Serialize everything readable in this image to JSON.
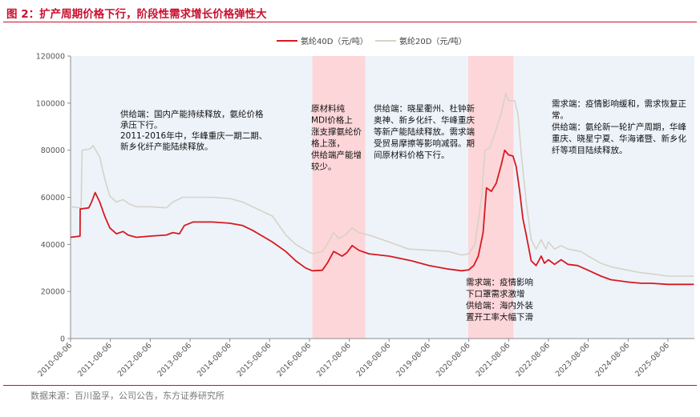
{
  "figure": {
    "title": "图 2：扩产周期价格下行，阶段性需求增长价格弹性大",
    "source": "数据来源：百川盈孚，公司公告，东方证券研究所"
  },
  "colors": {
    "pa40d": "#d71920",
    "pa20d": "#d6d3c6",
    "shade_blue": "#eef3fa",
    "shade_red": "#fdd6d9",
    "accent": "#c8102e"
  },
  "chart_data": {
    "type": "line",
    "ylim": [
      0,
      120000
    ],
    "y_ticks": [
      0,
      20000,
      40000,
      60000,
      80000,
      100000,
      120000
    ],
    "y_tick_labels": [
      "0",
      "20000",
      "40000",
      "60000",
      "80000",
      "100000",
      "120000"
    ],
    "xlim": [
      "2010-08-06",
      "2026-04-06"
    ],
    "x_tick_labels": [
      "2010-08-06",
      "2011-08-06",
      "2012-08-06",
      "2013-08-06",
      "2014-08-06",
      "2015-08-06",
      "2016-08-06",
      "2017-08-06",
      "2018-08-06",
      "2019-08-06",
      "2020-08-06",
      "2021-08-06",
      "2022-08-06",
      "2023-08-06",
      "2024-08-06",
      "2025-08-06"
    ],
    "legend": {
      "placement": "top-center"
    },
    "series": [
      {
        "name": "氨纶40D（元/吨）",
        "color": "#d71920",
        "points": [
          [
            "2010-08-06",
            43000
          ],
          [
            "2010-11-01",
            43500
          ],
          [
            "2010-11-02",
            55000
          ],
          [
            "2011-01-20",
            55500
          ],
          [
            "2011-02-15",
            58000
          ],
          [
            "2011-03-20",
            62000
          ],
          [
            "2011-05-01",
            58000
          ],
          [
            "2011-06-15",
            52000
          ],
          [
            "2011-08-01",
            47000
          ],
          [
            "2011-10-01",
            44500
          ],
          [
            "2011-12-01",
            45500
          ],
          [
            "2012-01-15",
            44000
          ],
          [
            "2012-04-01",
            43000
          ],
          [
            "2012-08-06",
            43500
          ],
          [
            "2013-01-01",
            44000
          ],
          [
            "2013-03-01",
            45000
          ],
          [
            "2013-05-01",
            44500
          ],
          [
            "2013-06-15",
            48000
          ],
          [
            "2013-09-01",
            49500
          ],
          [
            "2014-03-01",
            49500
          ],
          [
            "2014-08-06",
            49000
          ],
          [
            "2014-12-01",
            48000
          ],
          [
            "2015-03-01",
            46000
          ],
          [
            "2015-06-01",
            43500
          ],
          [
            "2015-09-01",
            41000
          ],
          [
            "2016-01-01",
            37000
          ],
          [
            "2016-04-01",
            33000
          ],
          [
            "2016-07-01",
            30000
          ],
          [
            "2016-09-01",
            28800
          ],
          [
            "2016-12-01",
            29000
          ],
          [
            "2017-01-15",
            32000
          ],
          [
            "2017-03-15",
            37000
          ],
          [
            "2017-06-01",
            35000
          ],
          [
            "2017-07-15",
            36500
          ],
          [
            "2017-09-01",
            39500
          ],
          [
            "2017-11-01",
            37500
          ],
          [
            "2018-02-01",
            36000
          ],
          [
            "2018-08-06",
            35000
          ],
          [
            "2019-03-01",
            33000
          ],
          [
            "2019-08-06",
            31000
          ],
          [
            "2020-02-01",
            29500
          ],
          [
            "2020-06-01",
            28800
          ],
          [
            "2020-08-06",
            29200
          ],
          [
            "2020-09-20",
            31000
          ],
          [
            "2020-11-01",
            35000
          ],
          [
            "2020-12-15",
            45000
          ],
          [
            "2021-01-15",
            64000
          ],
          [
            "2021-03-01",
            62500
          ],
          [
            "2021-04-15",
            66000
          ],
          [
            "2021-06-01",
            74000
          ],
          [
            "2021-07-01",
            80000
          ],
          [
            "2021-08-06",
            78000
          ],
          [
            "2021-09-15",
            77500
          ],
          [
            "2021-10-15",
            73000
          ],
          [
            "2021-11-15",
            63000
          ],
          [
            "2021-12-15",
            51000
          ],
          [
            "2022-01-15",
            44000
          ],
          [
            "2022-03-01",
            33000
          ],
          [
            "2022-04-15",
            31000
          ],
          [
            "2022-06-01",
            35000
          ],
          [
            "2022-07-01",
            32000
          ],
          [
            "2022-08-06",
            33500
          ],
          [
            "2022-10-01",
            31500
          ],
          [
            "2022-12-01",
            33500
          ],
          [
            "2023-02-01",
            31500
          ],
          [
            "2023-05-01",
            31000
          ],
          [
            "2023-08-06",
            29000
          ],
          [
            "2023-12-01",
            26500
          ],
          [
            "2024-03-01",
            25000
          ],
          [
            "2024-08-06",
            24000
          ],
          [
            "2024-12-01",
            23500
          ],
          [
            "2025-03-01",
            23500
          ],
          [
            "2025-08-06",
            23000
          ],
          [
            "2026-04-01",
            23000
          ]
        ]
      },
      {
        "name": "氨纶20D（元/吨）",
        "color": "#d6d3c6",
        "points": [
          [
            "2010-08-06",
            56000
          ],
          [
            "2010-11-01",
            55500
          ],
          [
            "2010-11-10",
            55000
          ],
          [
            "2010-11-20",
            80000
          ],
          [
            "2011-02-01",
            80500
          ],
          [
            "2011-03-01",
            82000
          ],
          [
            "2011-05-01",
            77000
          ],
          [
            "2011-06-15",
            68000
          ],
          [
            "2011-08-01",
            60500
          ],
          [
            "2011-10-01",
            58000
          ],
          [
            "2011-12-01",
            59000
          ],
          [
            "2012-02-01",
            57000
          ],
          [
            "2012-04-01",
            56000
          ],
          [
            "2012-08-06",
            56000
          ],
          [
            "2013-01-01",
            55500
          ],
          [
            "2013-03-01",
            58000
          ],
          [
            "2013-06-01",
            60000
          ],
          [
            "2014-03-01",
            60000
          ],
          [
            "2014-08-06",
            59500
          ],
          [
            "2014-12-01",
            58000
          ],
          [
            "2015-03-01",
            56000
          ],
          [
            "2015-06-01",
            54000
          ],
          [
            "2015-09-01",
            52000
          ],
          [
            "2016-01-01",
            44000
          ],
          [
            "2016-04-01",
            40000
          ],
          [
            "2016-07-01",
            37500
          ],
          [
            "2016-09-01",
            36000
          ],
          [
            "2016-12-01",
            37000
          ],
          [
            "2017-01-15",
            40000
          ],
          [
            "2017-03-15",
            45000
          ],
          [
            "2017-05-01",
            42500
          ],
          [
            "2017-07-01",
            44000
          ],
          [
            "2017-09-01",
            47000
          ],
          [
            "2017-11-01",
            45000
          ],
          [
            "2018-02-01",
            44000
          ],
          [
            "2018-08-06",
            41000
          ],
          [
            "2019-02-01",
            38000
          ],
          [
            "2019-08-06",
            37500
          ],
          [
            "2020-02-01",
            37000
          ],
          [
            "2020-06-01",
            35500
          ],
          [
            "2020-08-06",
            36000
          ],
          [
            "2020-10-01",
            40000
          ],
          [
            "2020-12-01",
            60000
          ],
          [
            "2021-01-01",
            80000
          ],
          [
            "2021-02-15",
            81000
          ],
          [
            "2021-04-01",
            87000
          ],
          [
            "2021-06-01",
            96000
          ],
          [
            "2021-07-10",
            104000
          ],
          [
            "2021-08-06",
            101000
          ],
          [
            "2021-10-01",
            101000
          ],
          [
            "2021-11-01",
            95000
          ],
          [
            "2021-12-01",
            78000
          ],
          [
            "2022-01-15",
            58000
          ],
          [
            "2022-03-01",
            42000
          ],
          [
            "2022-04-15",
            38000
          ],
          [
            "2022-06-01",
            42000
          ],
          [
            "2022-07-15",
            38000
          ],
          [
            "2022-08-06",
            41000
          ],
          [
            "2022-10-01",
            38000
          ],
          [
            "2022-12-01",
            39500
          ],
          [
            "2023-02-01",
            38000
          ],
          [
            "2023-06-01",
            37000
          ],
          [
            "2023-08-06",
            35000
          ],
          [
            "2023-12-01",
            32000
          ],
          [
            "2024-03-01",
            30500
          ],
          [
            "2024-08-06",
            29000
          ],
          [
            "2024-12-01",
            28000
          ],
          [
            "2025-03-01",
            27500
          ],
          [
            "2025-08-06",
            26500
          ],
          [
            "2026-04-01",
            26500
          ]
        ]
      }
    ],
    "shaded_periods": [
      {
        "kind": "supply",
        "start": "2010-08-06",
        "end": "2016-09-01"
      },
      {
        "kind": "demand",
        "start": "2016-09-01",
        "end": "2018-01-01"
      },
      {
        "kind": "supply",
        "start": "2018-01-01",
        "end": "2020-08-01"
      },
      {
        "kind": "demand",
        "start": "2020-08-01",
        "end": "2021-09-20"
      },
      {
        "kind": "supply",
        "start": "2021-09-20",
        "end": "2026-04-06"
      }
    ],
    "annotations": [
      {
        "id": "p1",
        "lines": [
          "供给端：国内产能持续释放，氨纶价格",
          "承压下行。",
          "2011-2016年中，华峰重庆一期二期、",
          "新乡化纤产能陆续释放。"
        ]
      },
      {
        "id": "p2",
        "lines": [
          "原材料纯",
          "MDI价格上",
          "涨支撑氨纶价",
          "格上涨，",
          "供给端产能增",
          "较少。"
        ]
      },
      {
        "id": "p3",
        "lines": [
          "供给端：晓星衢州、杜钟新",
          "奥神、新乡化纤、华峰重庆",
          "等新产能陆续释放。需求端",
          "受贸易摩擦等影响减弱。期",
          "间原材料价格下行。"
        ]
      },
      {
        "id": "p4",
        "lines": [
          "需求端：疫情影响",
          "下口罩需求激增",
          "供给端：海内外装",
          "置开工率大幅下滑"
        ]
      },
      {
        "id": "p5",
        "lines": [
          "需求端：疫情影响缓和，需求恢复正",
          "常。",
          "供给端：氨纶新一轮扩产周期，华峰",
          "重庆、晓星宁夏、华海诸暨、新乡化",
          "纤等项目陆续释放。"
        ]
      }
    ]
  }
}
